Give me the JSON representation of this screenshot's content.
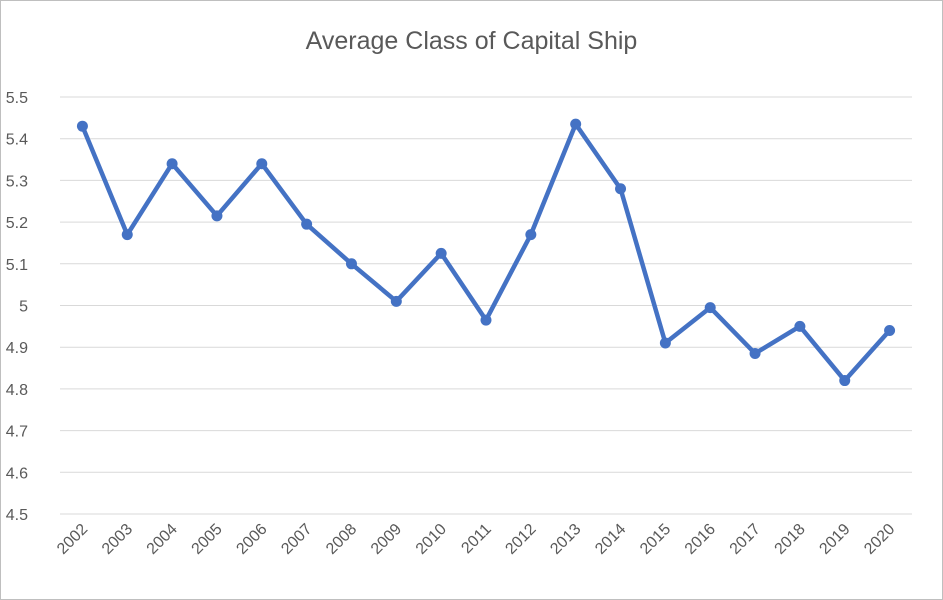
{
  "chart_data": {
    "type": "line",
    "title": "Average Class of Capital Ship",
    "xlabel": "",
    "ylabel": "",
    "categories": [
      "2002",
      "2003",
      "2004",
      "2005",
      "2006",
      "2007",
      "2008",
      "2009",
      "2010",
      "2011",
      "2012",
      "2013",
      "2014",
      "2015",
      "2016",
      "2017",
      "2018",
      "2019",
      "2020"
    ],
    "series": [
      {
        "values": [
          5.43,
          5.17,
          5.34,
          5.215,
          5.34,
          5.195,
          5.1,
          5.01,
          5.125,
          4.965,
          5.17,
          5.435,
          5.28,
          4.91,
          4.995,
          4.885,
          4.95,
          4.82,
          4.94
        ]
      }
    ],
    "ylim": [
      4.5,
      5.5
    ],
    "yticks": [
      "5.5",
      "5.4",
      "5.3",
      "5.2",
      "5.1",
      "5",
      "4.9",
      "4.8",
      "4.7",
      "4.6",
      "4.5"
    ],
    "grid": true,
    "legend": "none",
    "colors": {
      "line": "#4472c4",
      "grid": "#d9d9d9",
      "text": "#595959"
    }
  }
}
